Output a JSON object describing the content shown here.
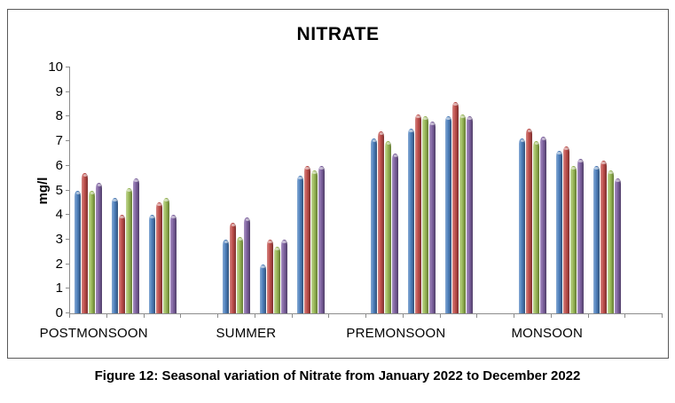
{
  "figure": {
    "caption": "Figure 12: Seasonal variation of Nitrate from January 2022 to December 2022"
  },
  "chart_data": {
    "type": "bar",
    "title": "NITRATE",
    "xlabel": "",
    "ylabel": "mg/l",
    "ylim": [
      0,
      10
    ],
    "ytick_step": 1,
    "yticks": [
      0,
      1,
      2,
      3,
      4,
      5,
      6,
      7,
      8,
      9,
      10
    ],
    "grid": false,
    "legend_position": "none",
    "series_colors": [
      "#4f81bd",
      "#c0504d",
      "#9bbb59",
      "#8064a2"
    ],
    "series_names": [
      "series-blue",
      "series-red",
      "series-green",
      "series-purple"
    ],
    "groups": [
      {
        "label": "POSTMONSOON",
        "subgroups": [
          [
            5.0,
            5.7,
            5.0,
            5.3
          ],
          [
            4.7,
            4.0,
            5.1,
            5.5
          ],
          [
            4.0,
            4.5,
            4.7,
            4.0
          ]
        ]
      },
      {
        "label": "SUMMER",
        "subgroups": [
          [
            3.0,
            3.7,
            3.1,
            3.9
          ],
          [
            2.0,
            3.0,
            2.7,
            3.0
          ],
          [
            5.6,
            6.0,
            5.8,
            6.0
          ]
        ]
      },
      {
        "label": "PREMONSOON",
        "subgroups": [
          [
            7.1,
            7.4,
            7.0,
            6.5
          ],
          [
            7.5,
            8.1,
            8.0,
            7.8
          ],
          [
            8.0,
            8.6,
            8.1,
            8.0
          ]
        ]
      },
      {
        "label": "MONSOON",
        "subgroups": [
          [
            7.1,
            7.5,
            7.0,
            7.2
          ],
          [
            6.6,
            6.8,
            6.0,
            6.3
          ],
          [
            6.0,
            6.2,
            5.8,
            5.5
          ]
        ]
      }
    ]
  }
}
